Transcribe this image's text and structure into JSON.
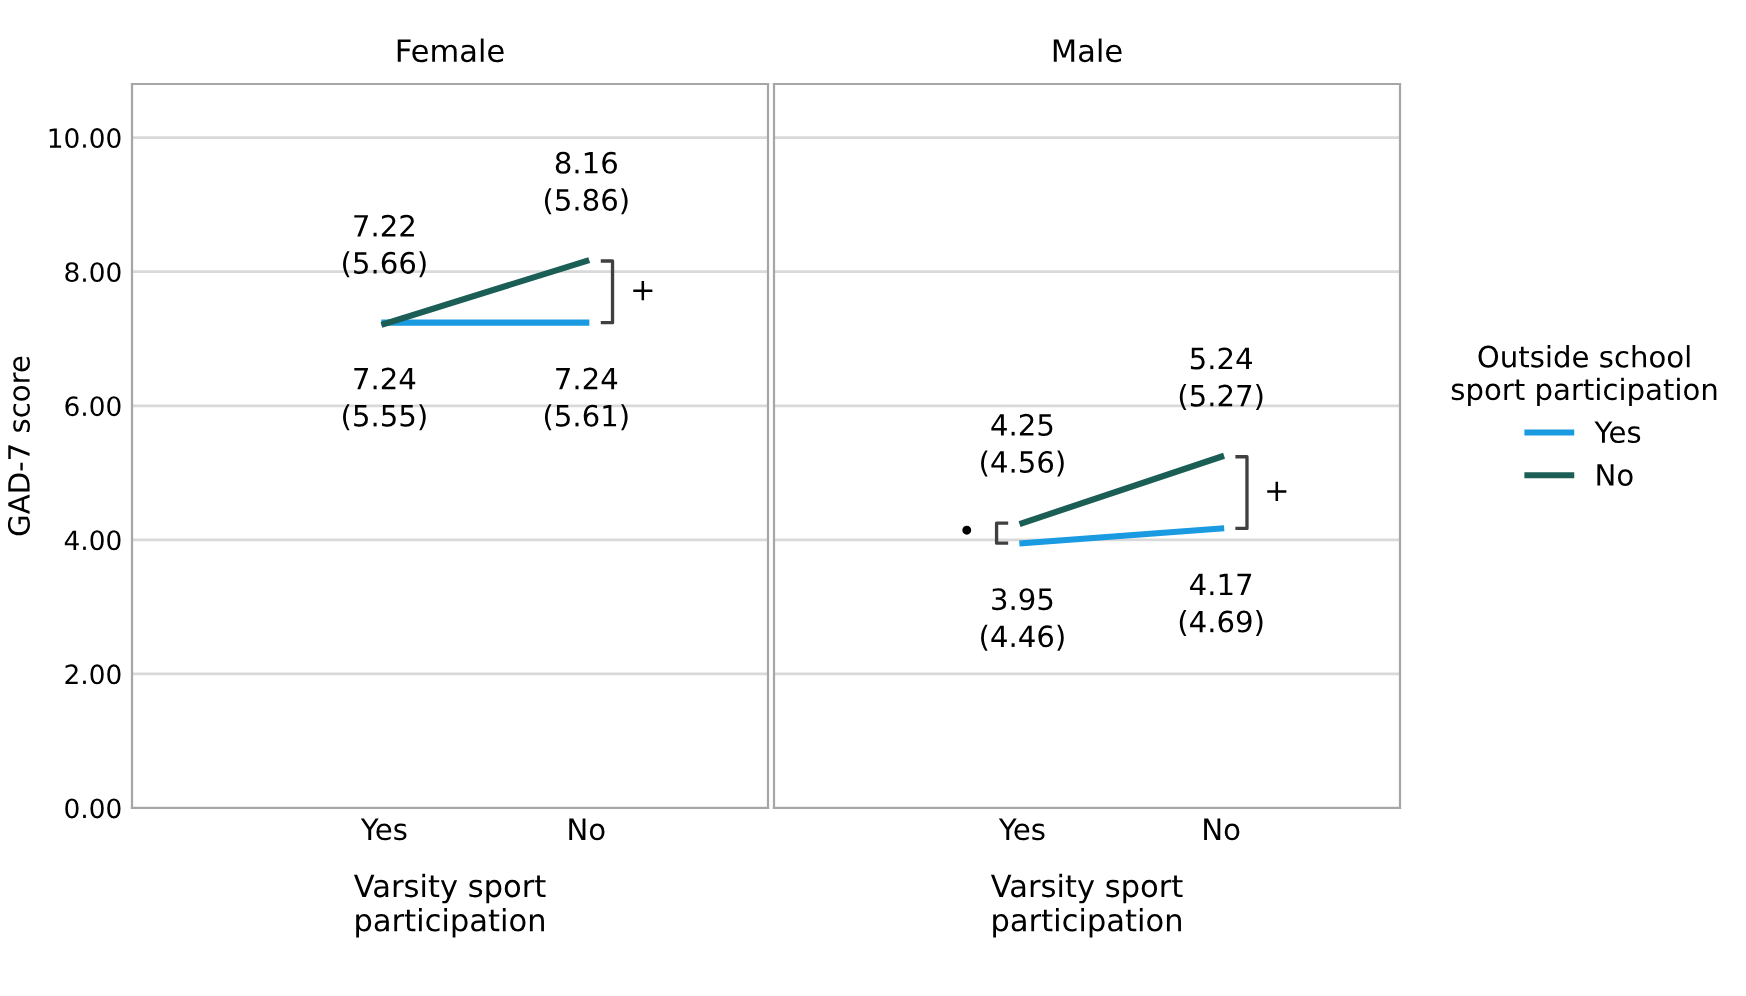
{
  "chart_data": [
    {
      "type": "line",
      "title": "Female",
      "xlabel": "Varsity sport\nparticipation",
      "ylabel": "GAD-7 score",
      "categories": [
        "Yes",
        "No"
      ],
      "series": [
        {
          "name": "Yes",
          "color": "#1a9ae0",
          "values": [
            7.24,
            7.24
          ],
          "value_labels": [
            "7.24\n(5.55)",
            "7.24\n(5.61)"
          ]
        },
        {
          "name": "No",
          "color": "#1b5e55",
          "values": [
            7.22,
            8.16
          ],
          "value_labels": [
            "7.22\n(5.66)",
            "8.16\n(5.86)"
          ]
        }
      ],
      "ylim": [
        0,
        10.8
      ],
      "yticks": [
        {
          "value": 0,
          "label": "0.00"
        },
        {
          "value": 2,
          "label": "2.00"
        },
        {
          "value": 4,
          "label": "4.00"
        },
        {
          "value": 6,
          "label": "6.00"
        },
        {
          "value": 8,
          "label": "8.00"
        },
        {
          "value": 10,
          "label": "10.00"
        }
      ],
      "grid": "y",
      "legend": "right",
      "legend_title": "Outside school\nsport participation",
      "marker": "none",
      "line_style": "solid",
      "annotations": [
        "+"
      ]
    },
    {
      "type": "line",
      "title": "Male",
      "xlabel": "Varsity sport\nparticipation",
      "categories": [
        "Yes",
        "No"
      ],
      "series": [
        {
          "color": "#1a9ae0",
          "values": [
            3.95,
            4.17
          ],
          "value_labels": [
            "3.95\n(4.46)",
            "4.17\n(4.69)"
          ]
        },
        {
          "color": "#1b5e55",
          "values": [
            4.25,
            5.24
          ],
          "value_labels": [
            "4.25\n(4.56)",
            "5.24\n(5.27)"
          ]
        }
      ],
      "ylim": [
        0,
        10.8
      ],
      "yticks": [
        0,
        2,
        4,
        6,
        8,
        10
      ],
      "tick_labels": "x",
      "grid": "y",
      "marker": "none",
      "line_style": "solid",
      "annotations": [
        "•",
        "+"
      ]
    }
  ]
}
